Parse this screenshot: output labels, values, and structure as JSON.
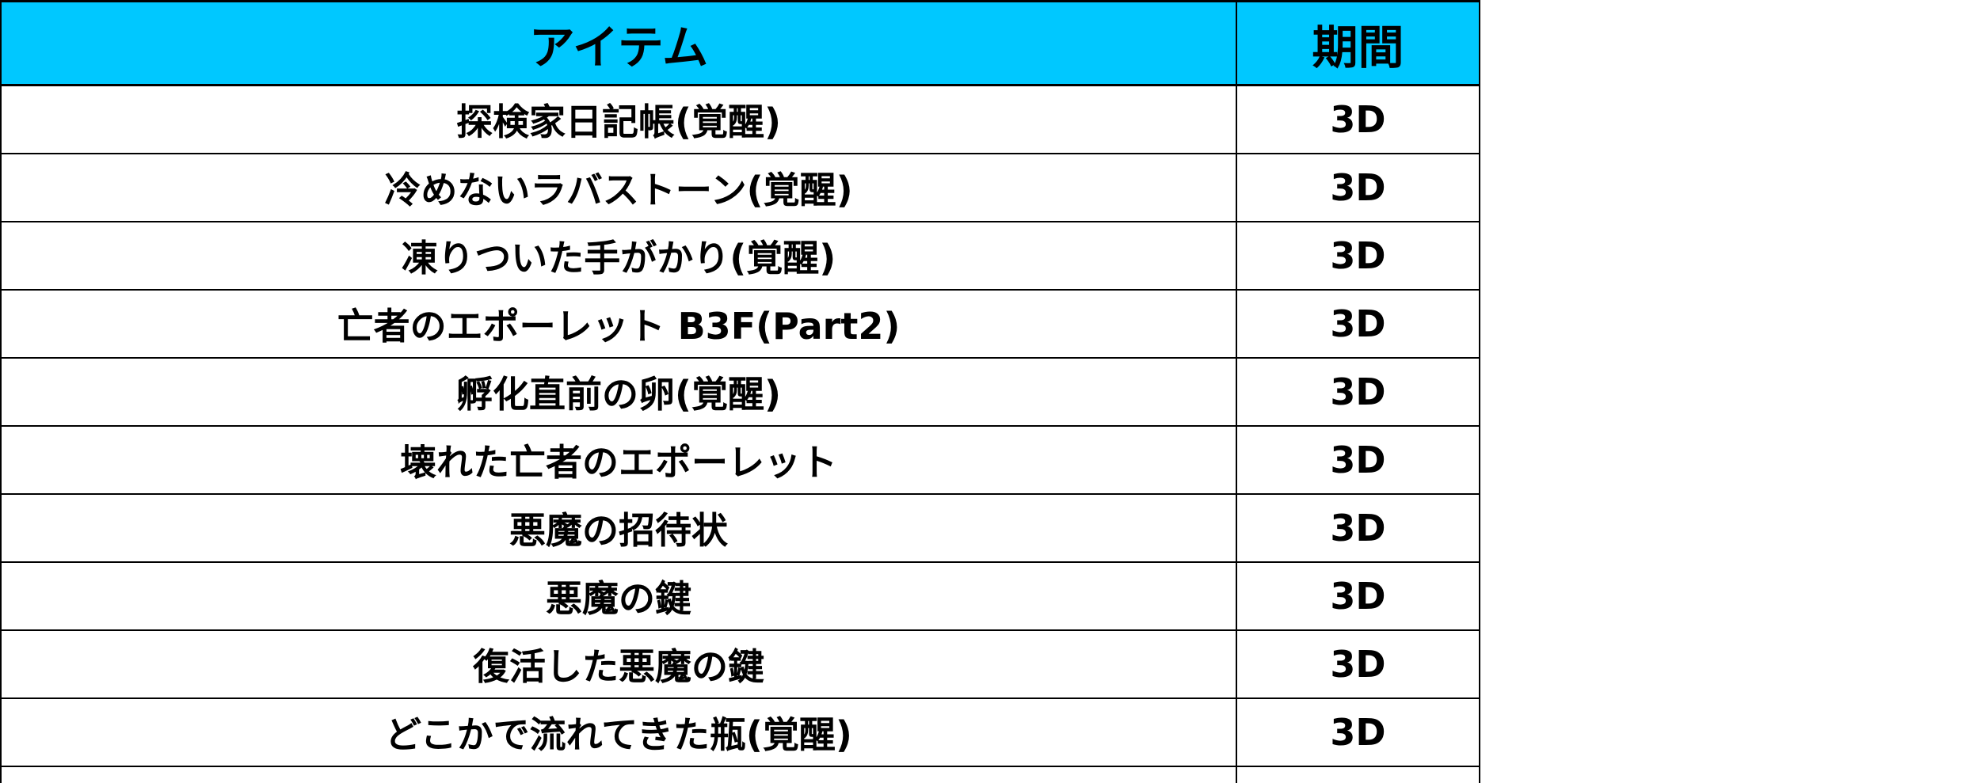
{
  "table": {
    "headers": {
      "item": "アイテム",
      "period": "期間"
    },
    "rows": [
      {
        "item": "探検家日記帳(覚醒)",
        "period": "3D"
      },
      {
        "item": "冷めないラバストーン(覚醒)",
        "period": "3D"
      },
      {
        "item": "凍りついた手がかり(覚醒)",
        "period": "3D"
      },
      {
        "item": "亡者のエポーレット B3F(Part2)",
        "period": "3D"
      },
      {
        "item": "孵化直前の卵(覚醒)",
        "period": "3D"
      },
      {
        "item": "壊れた亡者のエポーレット",
        "period": "3D"
      },
      {
        "item": "悪魔の招待状",
        "period": "3D"
      },
      {
        "item": "悪魔の鍵",
        "period": "3D"
      },
      {
        "item": "復活した悪魔の鍵",
        "period": "3D"
      },
      {
        "item": "どこかで流れてきた瓶(覚醒)",
        "period": "3D"
      }
    ]
  },
  "colors": {
    "header_background": "#00c8ff",
    "border": "#000000"
  }
}
